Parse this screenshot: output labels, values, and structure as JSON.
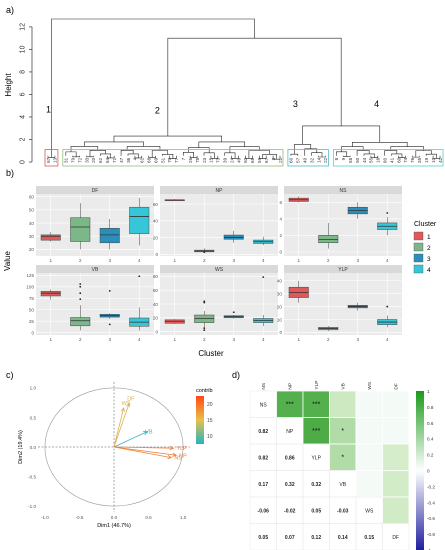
{
  "panel_labels": [
    "a)",
    "b)",
    "c)",
    "d)"
  ],
  "chart_data": [
    {
      "type": "dendrogram",
      "ylabel": "Height",
      "yticks": [
        0,
        2,
        4,
        6,
        8,
        10,
        12
      ],
      "ylim": [
        0,
        13.5
      ],
      "clusters": [
        {
          "id": "1",
          "color": "#e0595a",
          "leaves": [
            "67",
            "13"
          ]
        },
        {
          "id": "2",
          "color": "#8ebf78",
          "leaves": [
            "31",
            "79",
            "72",
            "33",
            "20",
            "62",
            "64",
            "71",
            "47",
            "36",
            "4",
            "61",
            "68",
            "69",
            "51",
            "70",
            "77",
            "7",
            "26",
            "78",
            "23",
            "15",
            "73",
            "39",
            "24",
            "49",
            "63",
            "65",
            "59",
            "67",
            "3",
            "21"
          ]
        },
        {
          "id": "3",
          "color": "#56b8d0",
          "leaves": [
            "60",
            "57",
            "40",
            "32",
            "14",
            "22"
          ]
        },
        {
          "id": "4",
          "color": "#56ccd8",
          "leaves": [
            "8",
            "9",
            "58",
            "50",
            "44",
            "55",
            "16",
            "80",
            "41",
            "60",
            "74",
            "76",
            "35",
            "19",
            "10",
            "42"
          ]
        }
      ],
      "merge_heights": {
        "top": 12.7,
        "c2c34": 11.0,
        "c3c4": 3.2
      }
    },
    {
      "type": "box",
      "xlabel": "Cluster",
      "ylabel": "Value",
      "categories": [
        "1",
        "2",
        "3",
        "4"
      ],
      "legend": {
        "title": "Cluster",
        "items": [
          "1",
          "2",
          "3",
          "4"
        ],
        "colors": [
          "#e0595a",
          "#7cb78a",
          "#2b8fbc",
          "#35c6d8"
        ]
      },
      "facets": [
        {
          "name": "DF",
          "yticks": [
            20,
            30,
            40,
            50,
            60
          ],
          "ylim": [
            15,
            62
          ],
          "boxes": [
            [
              26,
              27,
              30,
              31,
              33
            ],
            [
              20,
              26,
              37,
              44,
              55
            ],
            [
              20,
              25,
              31,
              36,
              43
            ],
            [
              23,
              32,
              45,
              52,
              59
            ]
          ],
          "outliers": [
            [],
            [],
            [],
            []
          ]
        },
        {
          "name": "NP",
          "yticks": [
            0,
            20,
            40,
            60
          ],
          "ylim": [
            -2,
            72
          ],
          "boxes": [
            [
              64,
              64,
              65,
              65,
              66
            ],
            [
              2,
              3,
              4,
              5,
              7
            ],
            [
              14,
              18,
              20,
              23,
              28
            ],
            [
              11,
              13,
              15,
              17,
              21
            ]
          ],
          "outliers": [
            [],
            [
              2.5
            ],
            [],
            []
          ]
        },
        {
          "name": "NS",
          "yticks": [
            0,
            2,
            4,
            6
          ],
          "ylim": [
            -0.5,
            7
          ],
          "boxes": [
            [
              6.0,
              6.1,
              6.3,
              6.5,
              6.7
            ],
            [
              0.4,
              1.1,
              1.5,
              2.0,
              3.5
            ],
            [
              4.0,
              4.6,
              5.0,
              5.4,
              6.0
            ],
            [
              2.0,
              2.7,
              3.1,
              3.5,
              4.2
            ]
          ],
          "outliers": [
            [],
            [],
            [],
            [
              4.7
            ]
          ]
        },
        {
          "name": "VB",
          "yticks": [
            0,
            25,
            50,
            75,
            100,
            125
          ],
          "ylim": [
            -5,
            130
          ],
          "boxes": [
            [
              72,
              80,
              86,
              90,
              94
            ],
            [
              5,
              15,
              26,
              33,
              60
            ],
            [
              30,
              34,
              37,
              40,
              42
            ],
            [
              5,
              14,
              23,
              32,
              55
            ]
          ],
          "outliers": [
            [],
            [
              73,
              86,
              100,
              106
            ],
            [
              91,
              18
            ],
            [
              123
            ]
          ]
        },
        {
          "name": "WS",
          "yticks": [
            0,
            20,
            40,
            60,
            80
          ],
          "ylim": [
            -5,
            85
          ],
          "boxes": [
            [
              11,
              12,
              15,
              17,
              18
            ],
            [
              6,
              13,
              19,
              24,
              30
            ],
            [
              19,
              20,
              22,
              23,
              24
            ],
            [
              8,
              13,
              16,
              19,
              24
            ]
          ],
          "outliers": [
            [],
            [
              42,
              44,
              5,
              2
            ],
            [
              28
            ],
            [
              79
            ]
          ]
        },
        {
          "name": "YLP",
          "yticks": [
            0,
            10,
            20,
            30,
            40
          ],
          "ylim": [
            -2,
            46
          ],
          "boxes": [
            [
              23,
              27,
              31,
              35,
              40
            ],
            [
              1,
              2,
              3,
              4,
              5
            ],
            [
              17,
              19,
              20,
              21,
              23
            ],
            [
              4,
              6,
              8,
              10,
              13
            ]
          ],
          "outliers": [
            [],
            [],
            [],
            [
              20
            ]
          ]
        }
      ]
    },
    {
      "type": "pca-biplot",
      "xlabel": "Dim1 (46.7%)",
      "ylabel": "Dim2 (19.4%)",
      "xlim": [
        -1.1,
        1.1
      ],
      "ylim": [
        -1.1,
        1.1
      ],
      "ticks": [
        -1.0,
        -0.5,
        0.0,
        0.5,
        1.0
      ],
      "legend": {
        "title": "contrib",
        "ticks": [
          10,
          15,
          20
        ]
      },
      "arrows": [
        {
          "name": "DF",
          "x": 0.22,
          "y": 0.74,
          "color": "#d8b05a"
        },
        {
          "name": "WS",
          "x": 0.14,
          "y": 0.66,
          "color": "#e0b048"
        },
        {
          "name": "VB",
          "x": 0.48,
          "y": 0.26,
          "color": "#35b2c2"
        },
        {
          "name": "YLP",
          "x": 0.86,
          "y": -0.02,
          "color": "#ee8040"
        },
        {
          "name": "NP",
          "x": 0.9,
          "y": -0.14,
          "color": "#f07836"
        },
        {
          "name": "NS",
          "x": 0.83,
          "y": -0.18,
          "color": "#eb8a3c"
        }
      ]
    },
    {
      "type": "heatmap",
      "variables": [
        "NS",
        "NP",
        "YLP",
        "VB",
        "WS",
        "DF"
      ],
      "lower_values": [
        [
          "NS",
          "",
          "",
          "",
          "",
          ""
        ],
        [
          "0.82",
          "NP",
          "",
          "",
          "",
          ""
        ],
        [
          "0.82",
          "0.86",
          "YLP",
          "",
          "",
          ""
        ],
        [
          "0.17",
          "0.32",
          "0.32",
          "VB",
          "",
          ""
        ],
        [
          "-0.06",
          "-0.02",
          "0.05",
          "-0.03",
          "WS",
          ""
        ],
        [
          "0.05",
          "0.07",
          "0.12",
          "0.14",
          "0.15",
          "DF"
        ]
      ],
      "upper_values": [
        [
          null,
          0.82,
          0.82,
          0.17,
          -0.06,
          0.05
        ],
        [
          null,
          null,
          0.86,
          0.32,
          -0.02,
          0.07
        ],
        [
          null,
          null,
          null,
          0.32,
          0.05,
          0.12
        ],
        [
          null,
          null,
          null,
          null,
          -0.03,
          0.14
        ],
        [
          null,
          null,
          null,
          null,
          null,
          0.15
        ],
        [
          null,
          null,
          null,
          null,
          null,
          null
        ]
      ],
      "upper_stars": [
        [
          "",
          "***",
          "***",
          "",
          "",
          ""
        ],
        [
          "",
          "",
          "***",
          "*",
          "",
          ""
        ],
        [
          "",
          "",
          "",
          "*",
          "",
          ""
        ],
        [
          "",
          "",
          "",
          "",
          "",
          ""
        ],
        [
          "",
          "",
          "",
          "",
          "",
          ""
        ],
        [
          "",
          "",
          "",
          "",
          "",
          ""
        ]
      ],
      "colorbar_ticks": [
        "1",
        "0.8",
        "0.6",
        "0.4",
        "0.2",
        "0",
        "-0.2",
        "-0.4",
        "-0.6",
        "-0.8",
        "-1"
      ]
    }
  ]
}
